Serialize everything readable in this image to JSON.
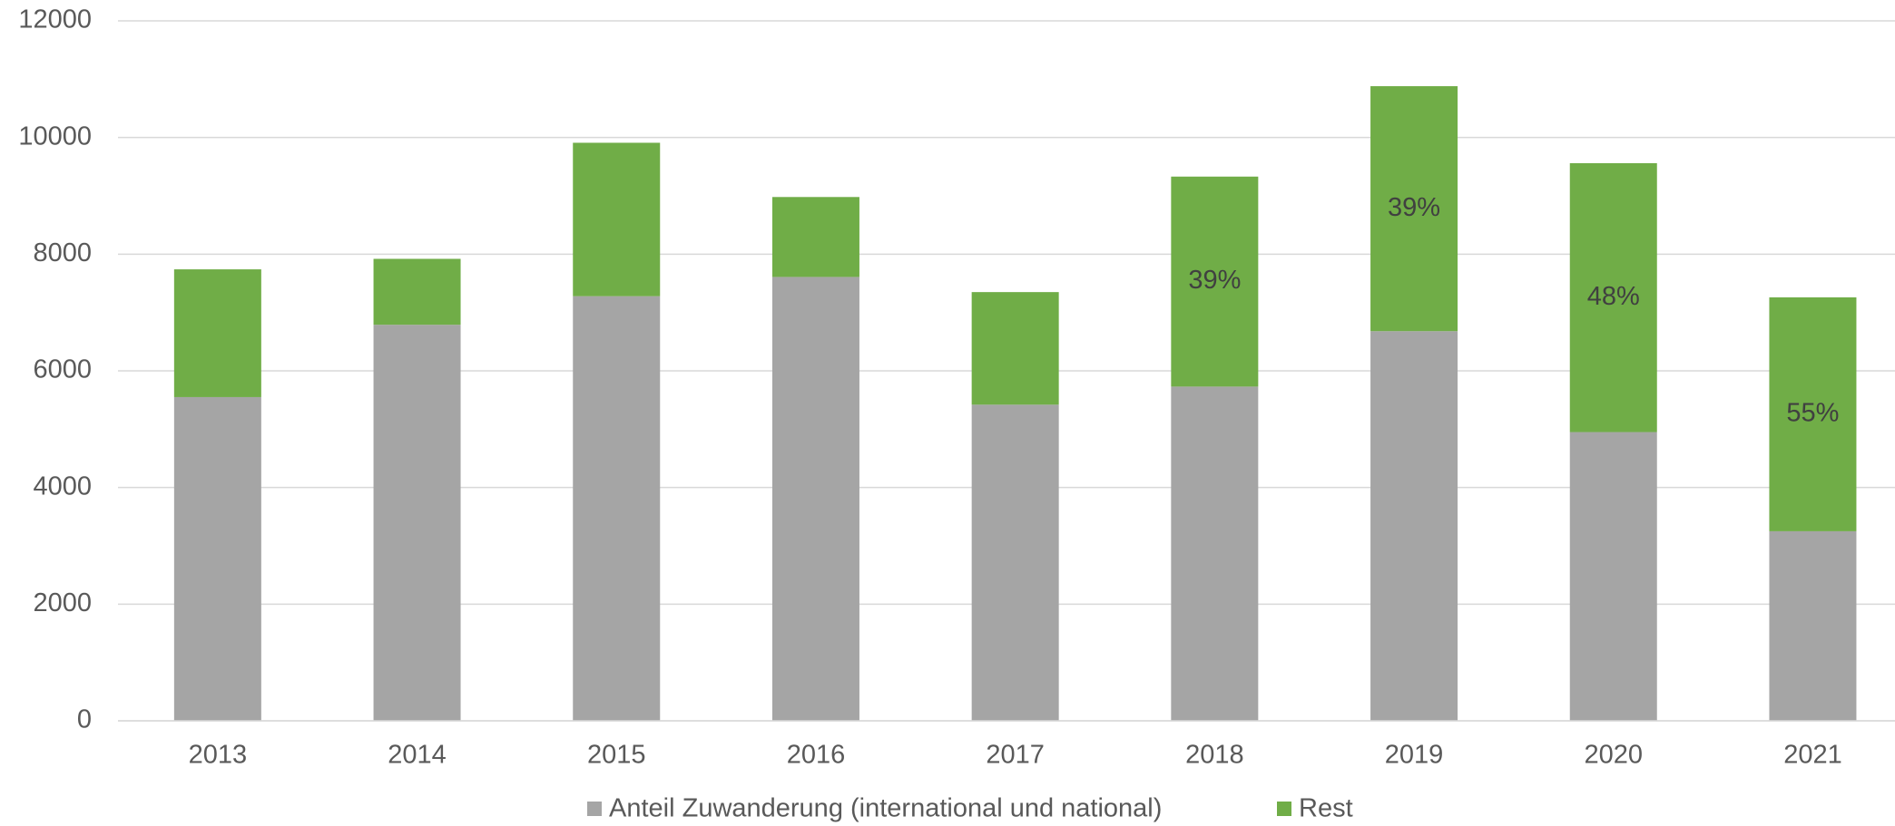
{
  "chart_data": {
    "type": "stacked_bar",
    "categories": [
      "2013",
      "2014",
      "2015",
      "2016",
      "2017",
      "2018",
      "2019",
      "2020",
      "2021"
    ],
    "series": [
      {
        "name": "Anteil Zuwanderung (international und national)",
        "color": "#a5a5a5",
        "values": [
          5550,
          6790,
          7280,
          7610,
          5420,
          5730,
          6680,
          4950,
          3250
        ]
      },
      {
        "name": "Rest",
        "color": "#70ad47",
        "values": [
          2190,
          1130,
          2630,
          1370,
          1930,
          3600,
          4200,
          4610,
          4010
        ],
        "data_labels": [
          null,
          null,
          null,
          null,
          null,
          "39%",
          "39%",
          "48%",
          "55%"
        ]
      }
    ],
    "ylim": [
      0,
      12000
    ],
    "yticks": [
      0,
      2000,
      4000,
      6000,
      8000,
      10000,
      12000
    ],
    "grid": true,
    "legend": "bottom"
  }
}
